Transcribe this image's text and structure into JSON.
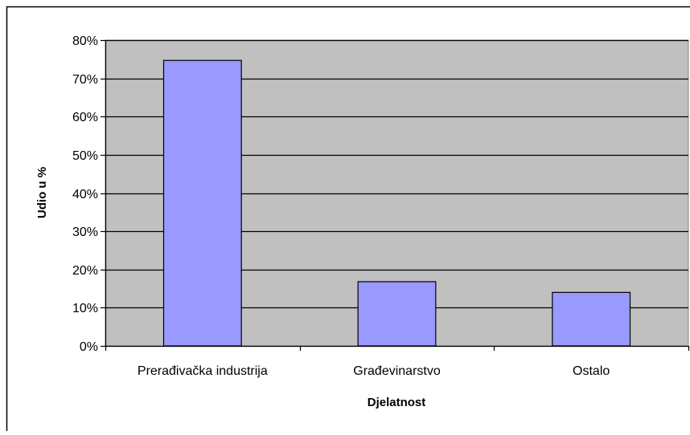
{
  "chart_data": {
    "type": "bar",
    "title": "",
    "categories": [
      "Prerađivačka industrija",
      "Građevinarstvo",
      "Ostalo"
    ],
    "values": [
      74.7,
      16.8,
      14.0
    ],
    "value_unit": "%",
    "xlabel": "Djelatnost",
    "ylabel": "Udio u %",
    "ylim": [
      0,
      80
    ],
    "y_ticks": [
      "0%",
      "10%",
      "20%",
      "30%",
      "40%",
      "50%",
      "60%",
      "70%",
      "80%"
    ],
    "grid": "horizontal",
    "legend": "none",
    "colors": {
      "bar": "#9999ff",
      "bar_border": "#000000",
      "plot_background": "#c0c0c0",
      "gridline": "#000000",
      "frame": "#000000"
    }
  }
}
